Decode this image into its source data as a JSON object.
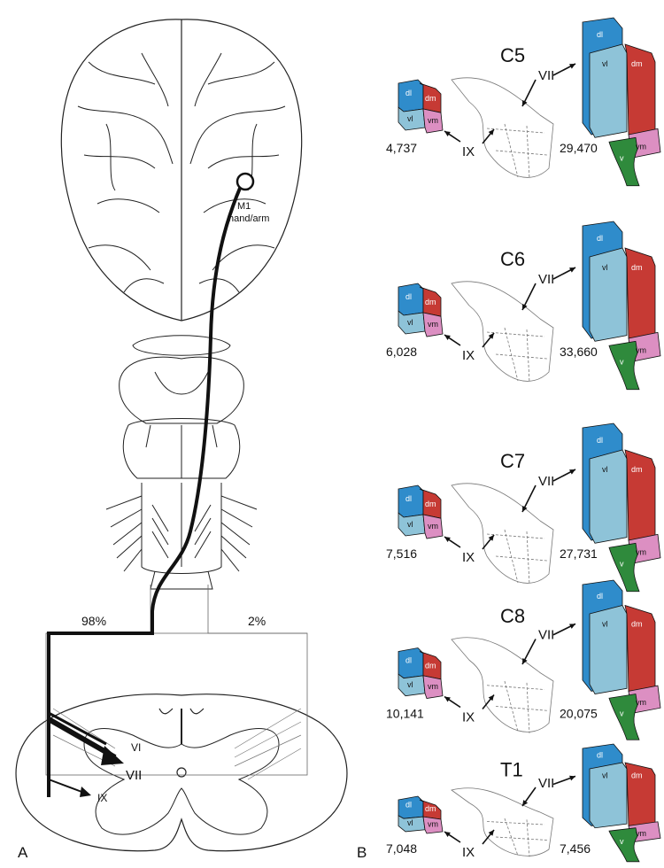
{
  "colors": {
    "dl": "#2f8ccb",
    "dl_side": "#1f6ea6",
    "vl": "#8ec3d8",
    "vl_side": "#6aa6bf",
    "dm": "#c63a34",
    "dm_side": "#9c2a25",
    "vm": "#dc8fc2",
    "vm_side": "#c373a8",
    "v": "#2f8a3c",
    "outline": "#111111"
  },
  "panel_a": {
    "label": "A",
    "m1_label_line1": "M1",
    "m1_label_line2": "hand/arm",
    "left_pct": "98%",
    "right_pct": "2%",
    "lamina_vi": "VI",
    "lamina_vii": "VII",
    "lamina_ix": "IX"
  },
  "panel_b": {
    "label": "B",
    "segment_labels": {
      "dl": "dl",
      "dm": "dm",
      "vl": "vl",
      "vm": "vm",
      "v": "v"
    },
    "arrow_label_vii": "VII",
    "arrow_label_ix": "IX",
    "rows": [
      {
        "segment": "C5",
        "ix_count": "4,737",
        "vii_count": "29,470"
      },
      {
        "segment": "C6",
        "ix_count": "6,028",
        "vii_count": "33,660"
      },
      {
        "segment": "C7",
        "ix_count": "7,516",
        "vii_count": "27,731"
      },
      {
        "segment": "C8",
        "ix_count": "10,141",
        "vii_count": "20,075"
      },
      {
        "segment": "T1",
        "ix_count": "7,048",
        "vii_count": "7,456"
      }
    ]
  }
}
